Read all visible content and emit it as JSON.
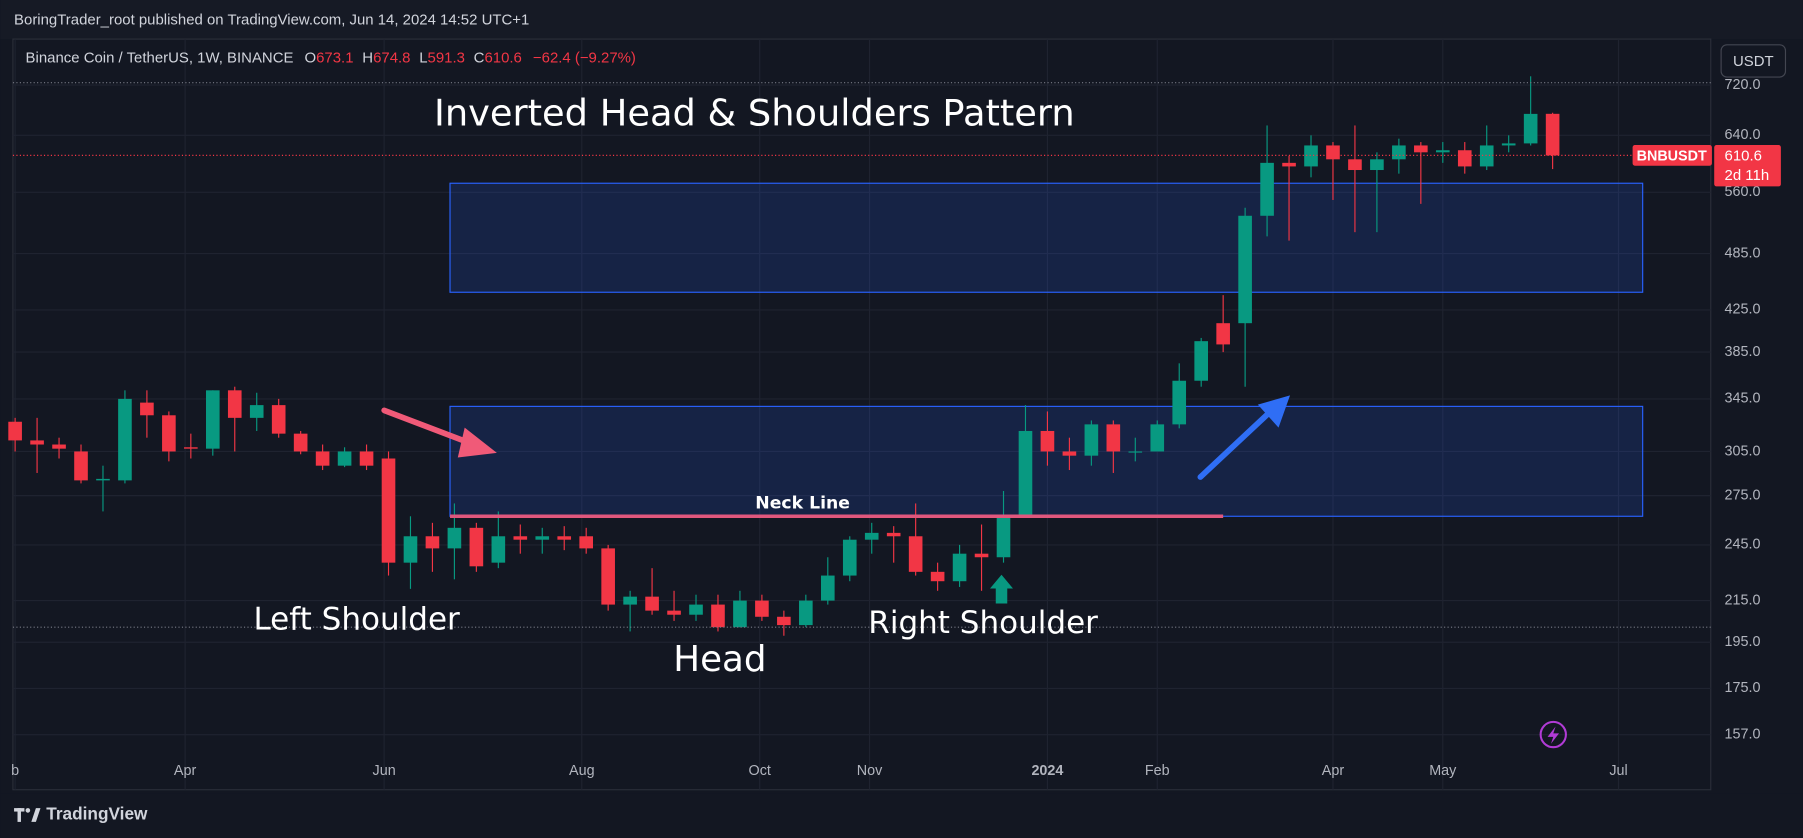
{
  "header": "BoringTrader_root published on TradingView.com, Jun 14, 2024 14:52 UTC+1",
  "footer": "TradingView",
  "chart_data": {
    "type": "candlestick",
    "symbol": "Binance Coin / TetherUS, 1W, BINANCE",
    "legend_keys": [
      "O",
      "H",
      "L",
      "C"
    ],
    "change_label": "−62.4 (−9.27%)",
    "currency": "USDT",
    "ticker": "BNBUSDT",
    "countdown": "2d 11h",
    "title": "Inverted Head & Shoulders Pattern",
    "annotations": [
      "Left Shoulder",
      "Head",
      "Right Shoulder"
    ],
    "neck_line": {
      "label": "Neck Line",
      "value": 262,
      "x": [
        19.8,
        55.0
      ],
      "color": "#e0577d"
    },
    "zones": [
      {
        "y": [
          443,
          572
        ],
        "x": [
          19.8,
          74.1
        ]
      },
      {
        "y": [
          262,
          339
        ],
        "x": [
          19.8,
          74.1
        ]
      }
    ],
    "price_lines": [
      724,
      202
    ],
    "up_color": "#089981",
    "down_color": "#f23645",
    "categories": [
      null,
      null,
      null,
      null,
      null,
      null,
      null,
      null,
      null,
      null,
      null,
      null,
      null,
      null,
      null,
      null,
      null,
      null,
      null,
      null,
      null,
      null,
      null,
      null,
      null,
      null,
      null,
      null,
      null,
      null,
      null,
      null,
      null,
      null,
      null,
      null,
      null,
      null,
      null,
      null,
      null,
      null,
      null,
      null,
      null,
      null,
      null,
      null,
      null,
      null,
      null,
      null,
      null,
      null,
      null,
      null,
      null,
      null,
      null,
      null,
      null,
      null,
      null,
      null,
      null,
      null,
      null,
      null,
      null,
      null,
      null
    ],
    "open": [
      327,
      313,
      310,
      305,
      285,
      285,
      342,
      332,
      308,
      307,
      352,
      330,
      340,
      318,
      305,
      295,
      305,
      300,
      235,
      250,
      243,
      255,
      235,
      250,
      248,
      250,
      250,
      243,
      213,
      217,
      210,
      208,
      213,
      202,
      215,
      207,
      203,
      215,
      228,
      248,
      252,
      250,
      230,
      225,
      240,
      238,
      262,
      320,
      305,
      302,
      325,
      305,
      305,
      325,
      360,
      412,
      412,
      530,
      600,
      595,
      625,
      605,
      590,
      605,
      625,
      615,
      618,
      595,
      625,
      628,
      673.1
    ],
    "high": [
      330,
      330,
      315,
      310,
      295,
      352,
      352,
      335,
      318,
      352,
      355,
      350,
      345,
      320,
      310,
      308,
      310,
      305,
      262,
      258,
      270,
      258,
      265,
      257,
      255,
      256,
      255,
      245,
      220,
      232,
      220,
      218,
      218,
      220,
      218,
      210,
      218,
      238,
      250,
      258,
      256,
      270,
      235,
      245,
      257,
      278,
      340,
      335,
      315,
      328,
      328,
      315,
      328,
      375,
      398,
      440,
      540,
      655,
      610,
      640,
      630,
      655,
      615,
      635,
      630,
      630,
      630,
      655,
      640,
      735,
      674.8
    ],
    "low": [
      305,
      290,
      300,
      283,
      265,
      283,
      315,
      298,
      300,
      302,
      305,
      320,
      315,
      303,
      292,
      294,
      292,
      228,
      221,
      230,
      226,
      230,
      232,
      240,
      240,
      242,
      240,
      210,
      200,
      208,
      205,
      205,
      200,
      202,
      205,
      198,
      202,
      213,
      225,
      240,
      235,
      228,
      220,
      222,
      220,
      235,
      262,
      295,
      292,
      295,
      290,
      298,
      305,
      322,
      355,
      385,
      355,
      505,
      500,
      580,
      550,
      510,
      510,
      585,
      545,
      600,
      585,
      590,
      615,
      625,
      591.3
    ],
    "close": [
      313,
      310,
      307,
      285,
      286,
      345,
      332,
      305,
      307,
      352,
      330,
      340,
      318,
      305,
      295,
      305,
      295,
      235,
      250,
      243,
      255,
      233,
      250,
      248,
      250,
      248,
      243,
      213,
      217,
      210,
      208,
      213,
      202,
      215,
      207,
      203,
      215,
      228,
      248,
      252,
      250,
      230,
      225,
      240,
      238,
      262,
      320,
      305,
      302,
      325,
      305,
      305,
      325,
      360,
      395,
      392,
      530,
      600,
      595,
      625,
      605,
      590,
      605,
      625,
      615,
      618,
      595,
      625,
      628,
      673,
      610.6
    ],
    "xlim": [
      -0.1,
      77.2
    ],
    "xticks": [
      {
        "value": 0,
        "label": "b"
      },
      {
        "value": 7.74,
        "label": "Apr"
      },
      {
        "value": 16.8,
        "label": "Jun"
      },
      {
        "value": 25.8,
        "label": "Aug"
      },
      {
        "value": 33.9,
        "label": "Oct"
      },
      {
        "value": 38.9,
        "label": "Nov"
      },
      {
        "value": 47.0,
        "label": "2024"
      },
      {
        "value": 52.0,
        "label": "Feb"
      },
      {
        "value": 60.0,
        "label": "Apr"
      },
      {
        "value": 65.0,
        "label": "May"
      },
      {
        "value": 73.0,
        "label": "Jul"
      }
    ],
    "ylim": [
      138,
      802
    ],
    "log_scale": true,
    "grid": true,
    "yticks": [
      {
        "value": 157,
        "label": "157.0"
      },
      {
        "value": 175,
        "label": "175.0"
      },
      {
        "value": 195,
        "label": "195.0"
      },
      {
        "value": 215,
        "label": "215.0"
      },
      {
        "value": 245,
        "label": "245.0"
      },
      {
        "value": 275,
        "label": "275.0"
      },
      {
        "value": 305,
        "label": "305.0"
      },
      {
        "value": 345,
        "label": "345.0"
      },
      {
        "value": 385,
        "label": "385.0"
      },
      {
        "value": 425,
        "label": "425.0"
      },
      {
        "value": 485,
        "label": "485.0"
      },
      {
        "value": 560,
        "label": "560.0"
      },
      {
        "value": 640,
        "label": "640.0"
      },
      {
        "value": 720,
        "label": "720.0"
      }
    ]
  }
}
